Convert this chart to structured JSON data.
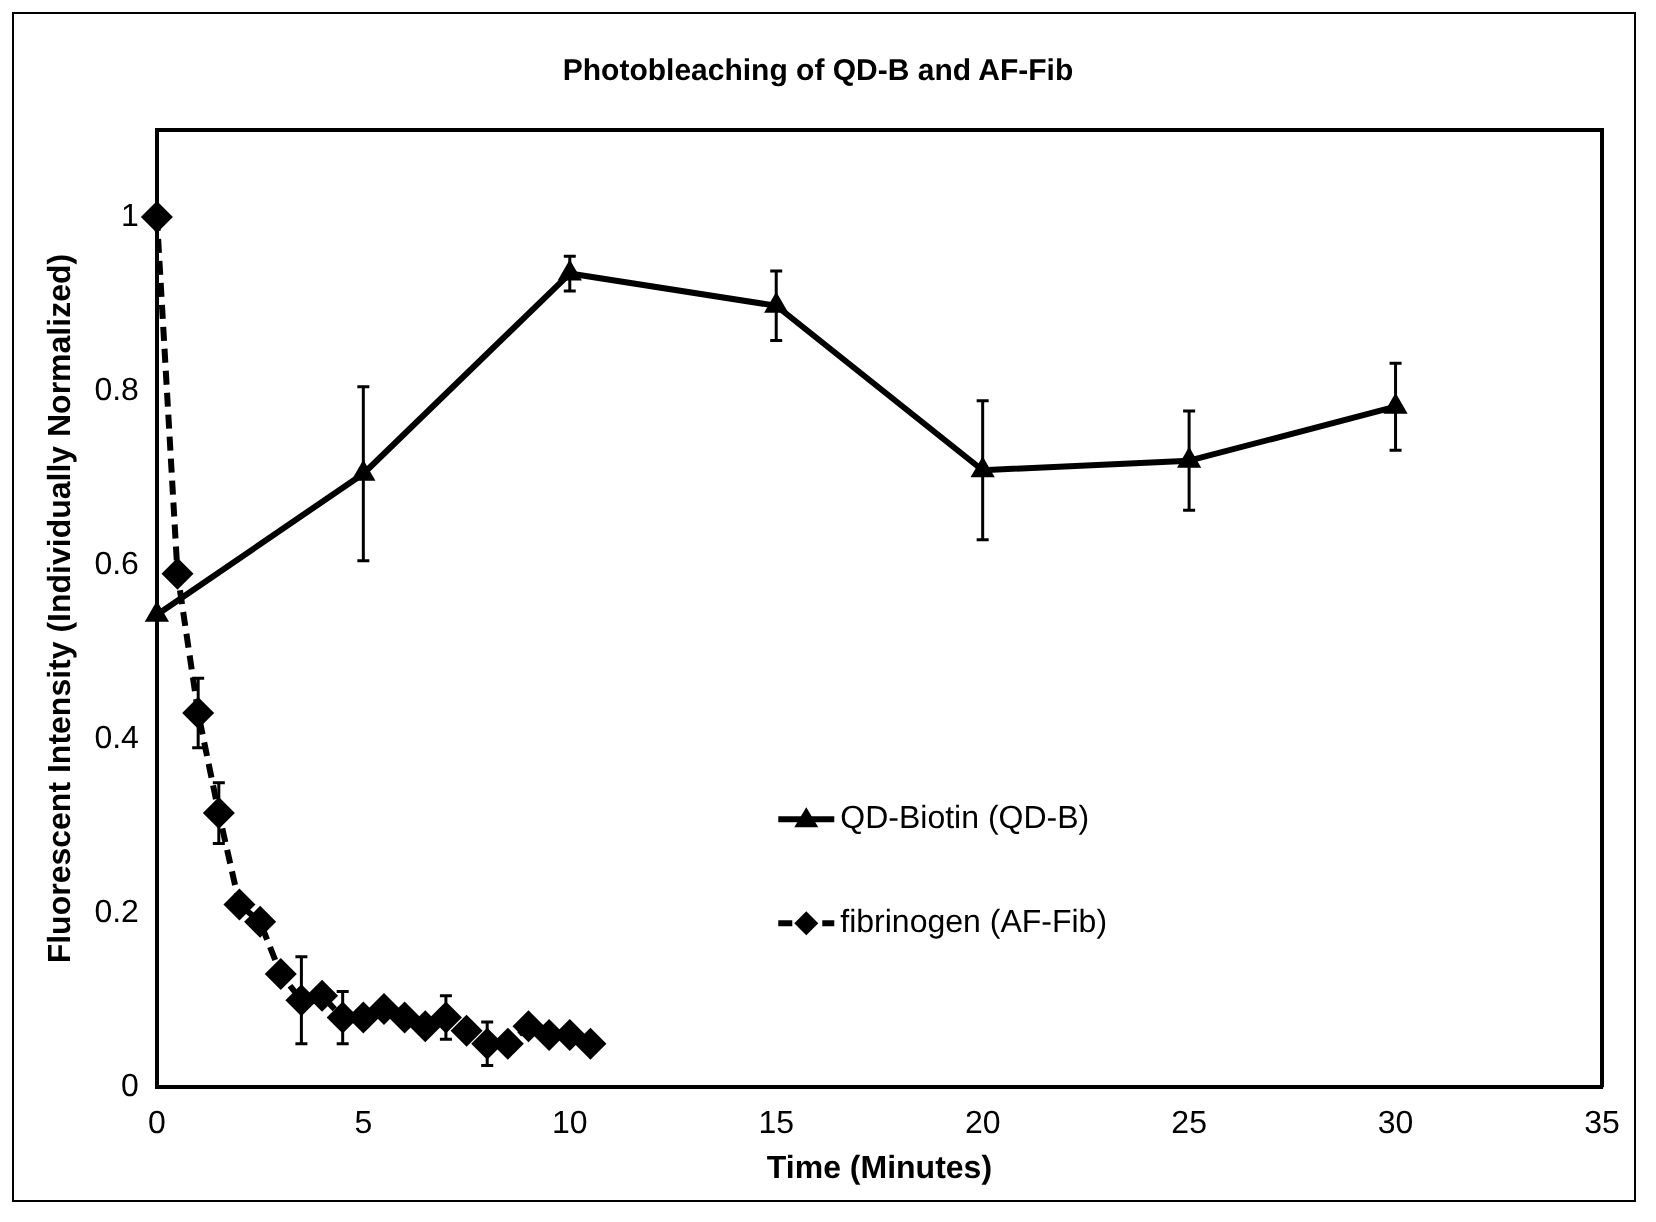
{
  "chart_data": {
    "type": "line",
    "title": "Photobleaching of QD-B and AF-Fib",
    "xlabel": "Time (Minutes)",
    "ylabel": "Fluorescent Intensity (Individually Normalized)",
    "xlim": [
      0,
      35
    ],
    "xticks": [
      0,
      5,
      10,
      15,
      20,
      25,
      30,
      35
    ],
    "ylim": [
      0,
      1.1
    ],
    "yticks": [
      0,
      0.2,
      0.4,
      0.6,
      0.8,
      1
    ],
    "grid": false,
    "legend": "right",
    "series": [
      {
        "name": "QD-Biotin (QD-B)",
        "color": "#000000",
        "marker": "triangle",
        "line_style": "solid",
        "x": [
          0,
          5,
          10,
          15,
          20,
          25,
          30
        ],
        "values": [
          0.543,
          0.705,
          0.935,
          0.898,
          0.709,
          0.72,
          0.782
        ],
        "errors": [
          null,
          0.1,
          0.02,
          0.04,
          0.08,
          0.057,
          0.05
        ]
      },
      {
        "name": "fibrinogen (AF-Fib)",
        "color": "#000000",
        "marker": "diamond",
        "line_style": "dashed",
        "x": [
          0,
          0.5,
          1,
          1.5,
          2,
          2.5,
          3,
          3.5,
          4,
          4.5,
          5,
          5.5,
          6,
          6.5,
          7,
          7.5,
          8,
          8.5,
          9,
          9.5,
          10,
          10.5
        ],
        "values": [
          1,
          0.59,
          0.43,
          0.315,
          0.21,
          0.19,
          0.13,
          0.1,
          0.105,
          0.08,
          0.08,
          0.09,
          0.08,
          0.07,
          0.08,
          0.065,
          0.05,
          0.05,
          0.07,
          0.06,
          0.06,
          0.05
        ],
        "errors": [
          null,
          null,
          0.04,
          0.035,
          null,
          null,
          null,
          0.05,
          null,
          0.03,
          null,
          null,
          null,
          null,
          0.025,
          null,
          0.025,
          null,
          null,
          null,
          null,
          null
        ]
      }
    ]
  }
}
